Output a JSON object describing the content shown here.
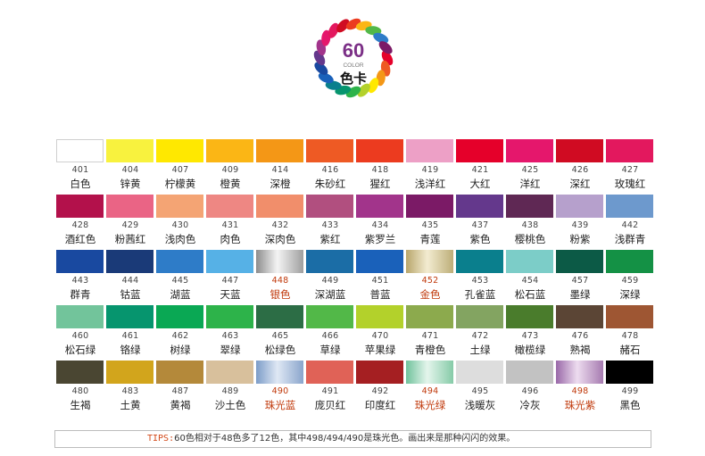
{
  "logo": {
    "number": "60",
    "sub": "COLOR",
    "title": "色卡"
  },
  "tips": {
    "tag": "TIPS:",
    "text": "60色相对于48色多了12色，其中498/494/490是珠光色。画出来是那种闪闪的效果。"
  },
  "swatches": [
    {
      "code": "401",
      "name": "白色",
      "color": "#ffffff"
    },
    {
      "code": "404",
      "name": "锌黄",
      "color": "#f8f23e"
    },
    {
      "code": "407",
      "name": "柠檬黄",
      "color": "#ffe800"
    },
    {
      "code": "409",
      "name": "橙黄",
      "color": "#fbb615"
    },
    {
      "code": "414",
      "name": "深橙",
      "color": "#f49716"
    },
    {
      "code": "416",
      "name": "朱砂红",
      "color": "#ee5a24"
    },
    {
      "code": "418",
      "name": "猩红",
      "color": "#ec3b1f"
    },
    {
      "code": "419",
      "name": "浅洋红",
      "color": "#eda0c6"
    },
    {
      "code": "421",
      "name": "大红",
      "color": "#e5002a"
    },
    {
      "code": "425",
      "name": "洋红",
      "color": "#e5176c"
    },
    {
      "code": "426",
      "name": "深红",
      "color": "#d00b22"
    },
    {
      "code": "427",
      "name": "玫瑰红",
      "color": "#e3185e"
    },
    {
      "code": "428",
      "name": "酒红色",
      "color": "#b3114b"
    },
    {
      "code": "429",
      "name": "粉茜红",
      "color": "#ea6485"
    },
    {
      "code": "430",
      "name": "浅肉色",
      "color": "#f4a474"
    },
    {
      "code": "431",
      "name": "肉色",
      "color": "#ee8783"
    },
    {
      "code": "432",
      "name": "深肉色",
      "color": "#f18e6b"
    },
    {
      "code": "433",
      "name": "紫红",
      "color": "#b14f7f"
    },
    {
      "code": "434",
      "name": "紫罗兰",
      "color": "#a2348b"
    },
    {
      "code": "435",
      "name": "青莲",
      "color": "#7b1a66"
    },
    {
      "code": "437",
      "name": "紫色",
      "color": "#64388c"
    },
    {
      "code": "438",
      "name": "樱桃色",
      "color": "#5f2854"
    },
    {
      "code": "439",
      "name": "粉紫",
      "color": "#b6a0cc"
    },
    {
      "code": "442",
      "name": "浅群青",
      "color": "#6d99cd"
    },
    {
      "code": "443",
      "name": "群青",
      "color": "#1949a0"
    },
    {
      "code": "444",
      "name": "钴蓝",
      "color": "#1a3a78"
    },
    {
      "code": "445",
      "name": "湖蓝",
      "color": "#2e7cc8"
    },
    {
      "code": "447",
      "name": "天蓝",
      "color": "#56b1e6"
    },
    {
      "code": "448",
      "name": "银色",
      "color": "#b9b9b9",
      "pearl": true,
      "gradient": "linear-gradient(90deg,#8d8d8d,#f4f4f4 45%,#9f9f9f)"
    },
    {
      "code": "449",
      "name": "深湖蓝",
      "color": "#1b6da6"
    },
    {
      "code": "451",
      "name": "普蓝",
      "color": "#1a61ba"
    },
    {
      "code": "452",
      "name": "金色",
      "color": "#cdbf8c",
      "pearl": true,
      "gradient": "linear-gradient(90deg,#b8a66b,#f3ecd1 45%,#bdae78)"
    },
    {
      "code": "453",
      "name": "孔雀蓝",
      "color": "#0a7f8d"
    },
    {
      "code": "454",
      "name": "松石蓝",
      "color": "#7ccdc8"
    },
    {
      "code": "457",
      "name": "墨绿",
      "color": "#0c5a46"
    },
    {
      "code": "459",
      "name": "深绿",
      "color": "#149145"
    },
    {
      "code": "460",
      "name": "松石绿",
      "color": "#72c49b"
    },
    {
      "code": "461",
      "name": "铬绿",
      "color": "#06956e"
    },
    {
      "code": "462",
      "name": "树绿",
      "color": "#0aa854"
    },
    {
      "code": "463",
      "name": "翠绿",
      "color": "#2db34a"
    },
    {
      "code": "465",
      "name": "松绿色",
      "color": "#2c6d45"
    },
    {
      "code": "466",
      "name": "草绿",
      "color": "#52b848"
    },
    {
      "code": "470",
      "name": "苹果绿",
      "color": "#b3d12b"
    },
    {
      "code": "471",
      "name": "青橙色",
      "color": "#8caa4d"
    },
    {
      "code": "472",
      "name": "土绿",
      "color": "#83a461"
    },
    {
      "code": "473",
      "name": "橄榄绿",
      "color": "#4a7c2c"
    },
    {
      "code": "476",
      "name": "熟褐",
      "color": "#5b4535"
    },
    {
      "code": "478",
      "name": "赭石",
      "color": "#9e5633"
    },
    {
      "code": "480",
      "name": "生褐",
      "color": "#4a4632"
    },
    {
      "code": "483",
      "name": "土黄",
      "color": "#d2a51c"
    },
    {
      "code": "487",
      "name": "黄褐",
      "color": "#b4893a"
    },
    {
      "code": "489",
      "name": "沙土色",
      "color": "#d8c09c"
    },
    {
      "code": "490",
      "name": "珠光蓝",
      "color": "#9fb6d4",
      "pearl": true,
      "gradient": "linear-gradient(90deg,#7c9cc8,#dfe8f4 45%,#8aa5cc)"
    },
    {
      "code": "491",
      "name": "庞贝红",
      "color": "#e06257"
    },
    {
      "code": "492",
      "name": "印度红",
      "color": "#a51f22"
    },
    {
      "code": "494",
      "name": "珠光绿",
      "color": "#9fd6b8",
      "pearl": true,
      "gradient": "linear-gradient(90deg,#70c29c,#e4f5ec 45%,#86cba8)"
    },
    {
      "code": "495",
      "name": "浅暖灰",
      "color": "#dddddd"
    },
    {
      "code": "496",
      "name": "冷灰",
      "color": "#c2c2c2"
    },
    {
      "code": "498",
      "name": "珠光紫",
      "color": "#b88ab8",
      "pearl": true,
      "gradient": "linear-gradient(90deg,#9968a8,#eddcef 45%,#a67bb0)"
    },
    {
      "code": "499",
      "name": "黑色",
      "color": "#000000"
    }
  ]
}
